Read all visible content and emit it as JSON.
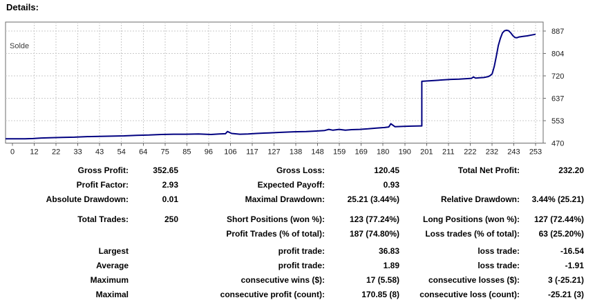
{
  "header": {
    "title": "Details:"
  },
  "chart_data": {
    "type": "line",
    "title": "Solde",
    "legend": [
      "Solde"
    ],
    "line_color": "#000080",
    "grid": "dashed",
    "y_axis_side": "right",
    "x_range": [
      0,
      253
    ],
    "y_range": [
      470,
      920
    ],
    "x_ticks": [
      "0",
      "12",
      "22",
      "33",
      "43",
      "54",
      "64",
      "75",
      "85",
      "96",
      "106",
      "117",
      "127",
      "138",
      "148",
      "159",
      "169",
      "180",
      "190",
      "201",
      "211",
      "222",
      "232",
      "243",
      "253"
    ],
    "y_ticks": [
      470,
      553,
      637,
      720,
      804,
      887
    ],
    "points": [
      [
        0,
        486
      ],
      [
        6,
        486
      ],
      [
        10,
        487
      ],
      [
        14,
        489
      ],
      [
        18,
        490
      ],
      [
        24,
        491
      ],
      [
        30,
        492
      ],
      [
        36,
        494
      ],
      [
        42,
        495
      ],
      [
        48,
        496
      ],
      [
        54,
        497
      ],
      [
        60,
        499
      ],
      [
        66,
        500
      ],
      [
        72,
        502
      ],
      [
        78,
        503
      ],
      [
        84,
        503
      ],
      [
        90,
        504
      ],
      [
        96,
        502
      ],
      [
        100,
        504
      ],
      [
        103,
        505
      ],
      [
        104,
        513
      ],
      [
        106,
        506
      ],
      [
        110,
        503
      ],
      [
        114,
        504
      ],
      [
        118,
        506
      ],
      [
        124,
        508
      ],
      [
        130,
        510
      ],
      [
        136,
        512
      ],
      [
        142,
        513
      ],
      [
        147,
        515
      ],
      [
        151,
        517
      ],
      [
        153,
        521
      ],
      [
        155,
        518
      ],
      [
        158,
        521
      ],
      [
        161,
        518
      ],
      [
        164,
        520
      ],
      [
        168,
        521
      ],
      [
        172,
        523
      ],
      [
        176,
        526
      ],
      [
        180,
        528
      ],
      [
        182,
        530
      ],
      [
        183,
        542
      ],
      [
        185,
        531
      ],
      [
        189,
        532
      ],
      [
        193,
        533
      ],
      [
        197,
        534
      ],
      [
        198,
        534
      ],
      [
        198,
        700
      ],
      [
        200,
        701
      ],
      [
        204,
        703
      ],
      [
        208,
        705
      ],
      [
        212,
        707
      ],
      [
        216,
        708
      ],
      [
        220,
        710
      ],
      [
        222,
        711
      ],
      [
        223,
        716
      ],
      [
        224,
        712
      ],
      [
        226,
        713
      ],
      [
        228,
        714
      ],
      [
        230,
        717
      ],
      [
        231,
        721
      ],
      [
        232,
        728
      ],
      [
        233,
        755
      ],
      [
        234,
        793
      ],
      [
        235,
        833
      ],
      [
        236,
        860
      ],
      [
        237,
        880
      ],
      [
        238,
        888
      ],
      [
        239,
        890
      ],
      [
        240,
        888
      ],
      [
        241,
        880
      ],
      [
        242,
        870
      ],
      [
        243,
        863
      ],
      [
        244,
        862
      ],
      [
        245,
        865
      ],
      [
        247,
        867
      ],
      [
        249,
        869
      ],
      [
        251,
        872
      ],
      [
        253,
        875
      ]
    ]
  },
  "stats": {
    "rows": [
      {
        "cells": [
          "Gross Profit:",
          "352.65",
          "Gross Loss:",
          "120.45",
          "Total Net Profit:",
          "232.20"
        ]
      },
      {
        "cells": [
          "Profit Factor:",
          "2.93",
          "Expected Payoff:",
          "0.93",
          "",
          ""
        ]
      },
      {
        "cells": [
          "Absolute Drawdown:",
          "0.01",
          "Maximal Drawdown:",
          "25.21 (3.44%)",
          "Relative Drawdown:",
          "3.44% (25.21)"
        ]
      },
      {
        "cells": [
          "Total Trades:",
          "250",
          "Short Positions (won %):",
          "123 (77.24%)",
          "Long Positions (won %):",
          "127 (72.44%)"
        ]
      },
      {
        "cells": [
          "",
          "",
          "Profit Trades (% of total):",
          "187 (74.80%)",
          "Loss trades (% of total):",
          "63 (25.20%)"
        ]
      },
      {
        "cells": [
          "Largest",
          "",
          "profit trade:",
          "36.83",
          "loss trade:",
          "-16.54"
        ]
      },
      {
        "cells": [
          "Average",
          "",
          "profit trade:",
          "1.89",
          "loss trade:",
          "-1.91"
        ]
      },
      {
        "cells": [
          "Maximum",
          "",
          "consecutive wins ($):",
          "17 (5.58)",
          "consecutive losses ($):",
          "3 (-25.21)"
        ]
      },
      {
        "cells": [
          "Maximal",
          "",
          "consecutive profit (count):",
          "170.85 (8)",
          "consecutive loss (count):",
          "-25.21 (3)"
        ]
      }
    ]
  },
  "colors": {
    "curve": "#000080",
    "grid": "#c9c9c9",
    "border": "#6b6b6b",
    "axis_text": "#1a1a1a"
  }
}
